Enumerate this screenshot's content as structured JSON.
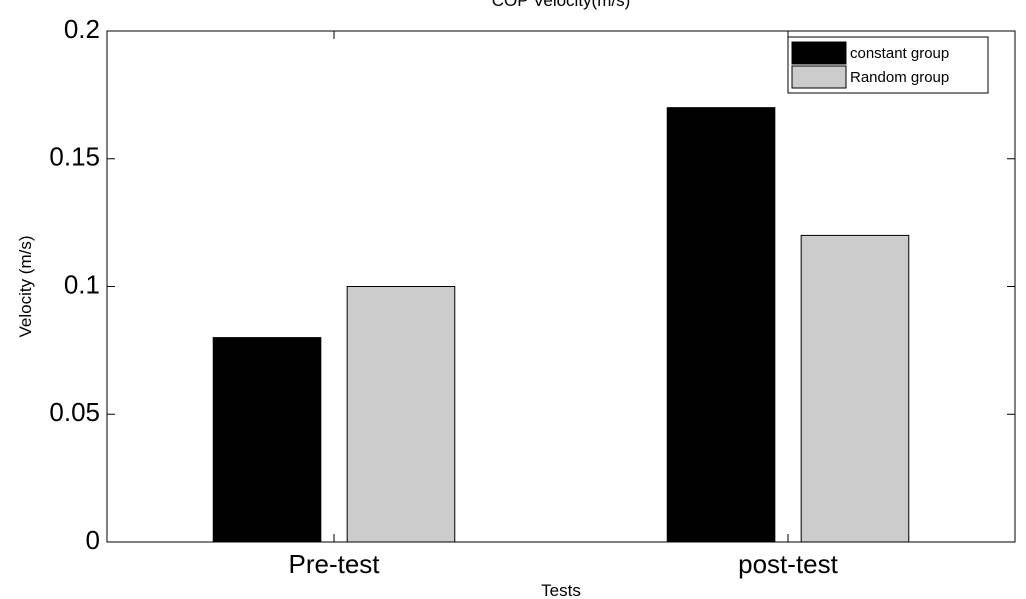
{
  "chart_data": {
    "type": "bar",
    "title": "COP Velocity(m/s)",
    "xlabel": "Tests",
    "ylabel": "Velocity (m/s)",
    "categories": [
      "Pre-test",
      "post-test"
    ],
    "series": [
      {
        "name": "constant group",
        "color": "#000000",
        "values": [
          0.08,
          0.17
        ]
      },
      {
        "name": "Random group",
        "color": "#cccccc",
        "values": [
          0.1,
          0.12
        ]
      }
    ],
    "ylim": [
      0,
      0.2
    ],
    "yticks": [
      0,
      0.05,
      0.1,
      0.15,
      0.2
    ],
    "ytick_labels": [
      "0",
      "0.05",
      "0.1",
      "0.15",
      "0.2"
    ],
    "grid": false,
    "legend_position": "top-right"
  }
}
